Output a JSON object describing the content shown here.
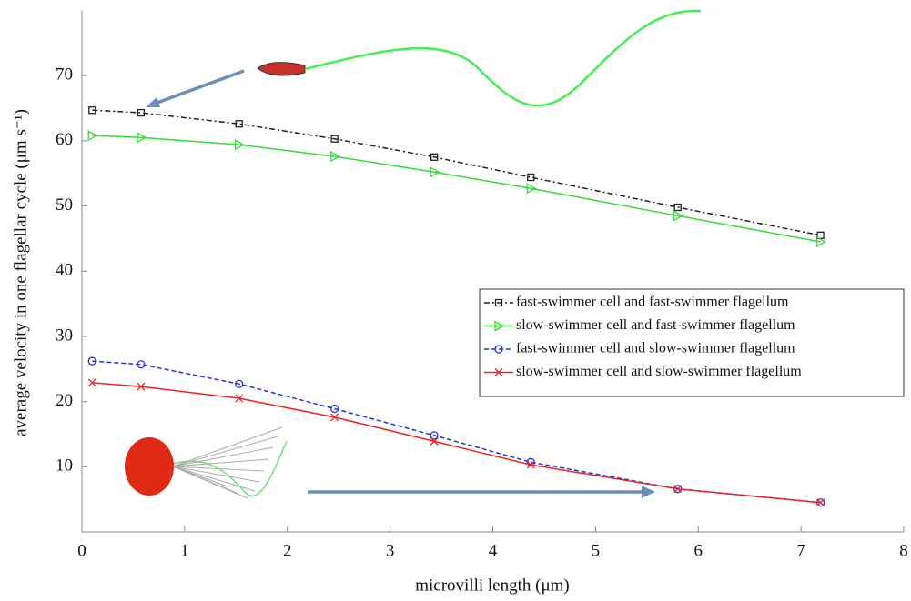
{
  "chart_data": {
    "type": "line",
    "x_label": "microvilli length (μm)",
    "y_label": "average velocity in one flagellar cycle (μm s⁻¹)",
    "x": [
      0.1,
      0.575,
      1.53,
      2.46,
      3.43,
      4.37,
      5.8,
      7.19
    ],
    "series": [
      {
        "name": "fast-swimmer cell and fast-swimmer flagellum",
        "color": "#222222",
        "marker": "square",
        "dash": "dashdot",
        "values": [
          64.7,
          64.3,
          62.6,
          60.3,
          57.5,
          54.4,
          49.8,
          45.5
        ]
      },
      {
        "name": "slow-swimmer cell and fast-swimmer flagellum",
        "color": "#33dd33",
        "marker": "triangle",
        "dash": "solid",
        "values": [
          60.8,
          60.5,
          59.4,
          57.6,
          55.2,
          52.7,
          48.5,
          44.5
        ]
      },
      {
        "name": "fast-swimmer cell and slow-swimmer flagellum",
        "color": "#2233dd",
        "marker": "circle",
        "dash": "dashed",
        "values": [
          26.2,
          25.7,
          22.7,
          18.9,
          14.8,
          10.7,
          6.6,
          4.5
        ]
      },
      {
        "name": "slow-swimmer cell and slow-swimmer flagellum",
        "color": "#ee2222",
        "marker": "cross",
        "dash": "solid",
        "values": [
          22.9,
          22.3,
          20.5,
          17.6,
          13.9,
          10.3,
          6.6,
          4.5
        ]
      }
    ],
    "xlim": [
      0,
      8
    ],
    "xticks": [
      0,
      1,
      2,
      3,
      4,
      5,
      6,
      7,
      8
    ],
    "ylim": [
      0,
      80
    ],
    "yticks": [
      10,
      20,
      30,
      40,
      50,
      60,
      70
    ],
    "grid": false,
    "legend": "right"
  }
}
